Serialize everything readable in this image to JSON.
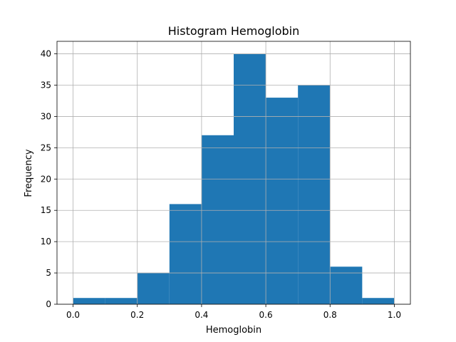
{
  "chart_data": {
    "type": "bar",
    "title": "Histogram Hemoglobin",
    "xlabel": "Hemoglobin",
    "ylabel": "Frequency",
    "bin_edges": [
      0.0,
      0.1,
      0.2,
      0.3,
      0.4,
      0.5,
      0.6,
      0.7,
      0.8,
      0.9,
      1.0
    ],
    "values": [
      1,
      1,
      5,
      16,
      27,
      40,
      33,
      35,
      6,
      1
    ],
    "xlim": [
      -0.05,
      1.05
    ],
    "ylim": [
      0,
      42
    ],
    "xticks": [
      0.0,
      0.2,
      0.4,
      0.6,
      0.8,
      1.0
    ],
    "xtick_labels": [
      "0.0",
      "0.2",
      "0.4",
      "0.6",
      "0.8",
      "1.0"
    ],
    "yticks": [
      0,
      5,
      10,
      15,
      20,
      25,
      30,
      35,
      40
    ],
    "ytick_labels": [
      "0",
      "5",
      "10",
      "15",
      "20",
      "25",
      "30",
      "35",
      "40"
    ],
    "bar_color": "#1f77b4",
    "grid": true
  }
}
